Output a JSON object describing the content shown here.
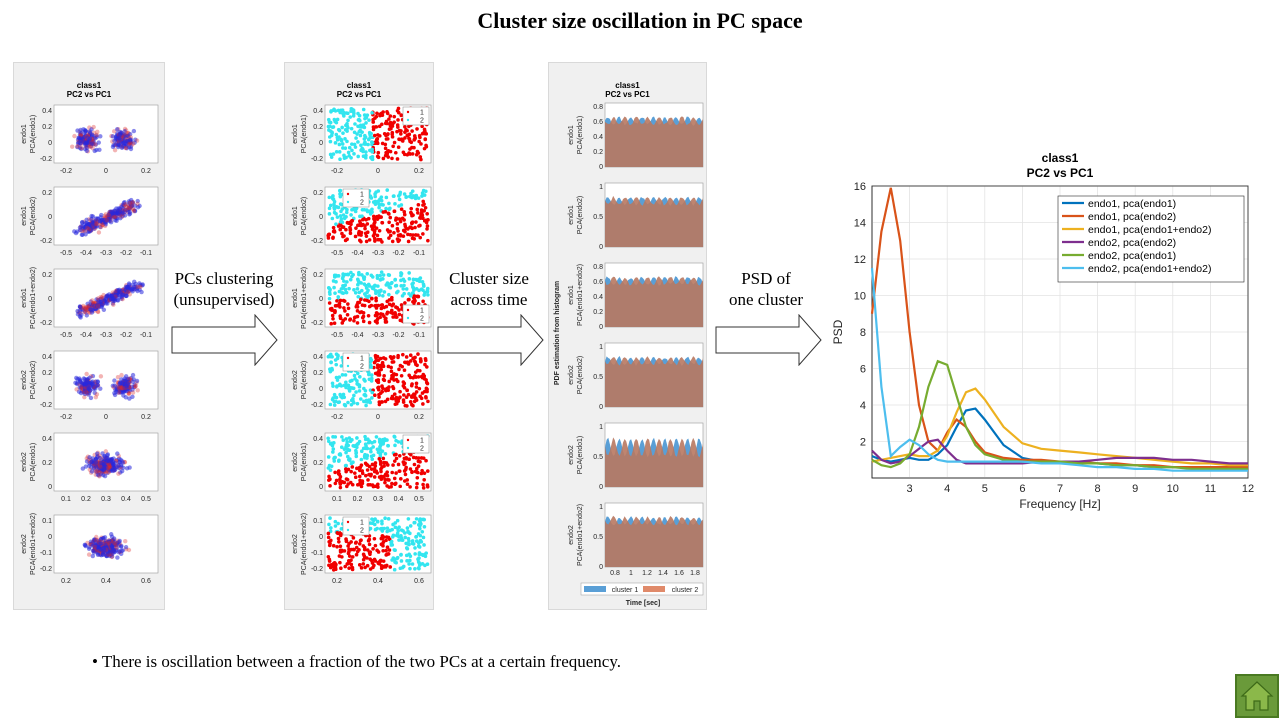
{
  "title": "Cluster size oscillation in PC space",
  "panel1": {
    "title_line1": "class1",
    "title_line2": "PC2 vs PC1",
    "rows": [
      {
        "ylabel1": "endo1",
        "ylabel2": "PCA(endo1)",
        "yticks": [
          "0.4",
          "0.2",
          "0",
          "-0.2"
        ],
        "xticks": [
          "-0.2",
          "0",
          "0.2"
        ]
      },
      {
        "ylabel1": "endo1",
        "ylabel2": "PCA(endo2)",
        "yticks": [
          "0.2",
          "0",
          "-0.2"
        ],
        "xticks": [
          "-0.5",
          "-0.4",
          "-0.3",
          "-0.2",
          "-0.1"
        ]
      },
      {
        "ylabel1": "endo1",
        "ylabel2": "PCA(endo1+endo2)",
        "yticks": [
          "0.2",
          "0",
          "-0.2"
        ],
        "xticks": [
          "-0.5",
          "-0.4",
          "-0.3",
          "-0.2",
          "-0.1"
        ]
      },
      {
        "ylabel1": "endo2",
        "ylabel2": "PCA(endo2)",
        "yticks": [
          "0.4",
          "0.2",
          "0",
          "-0.2"
        ],
        "xticks": [
          "-0.2",
          "0",
          "0.2"
        ]
      },
      {
        "ylabel1": "endo2",
        "ylabel2": "PCA(endo1)",
        "yticks": [
          "0.4",
          "0.2",
          "0"
        ],
        "xticks": [
          "0.1",
          "0.2",
          "0.3",
          "0.4",
          "0.5"
        ]
      },
      {
        "ylabel1": "endo2",
        "ylabel2": "PCA(endo1+endo2)",
        "yticks": [
          "0.1",
          "0",
          "-0.1",
          "-0.2"
        ],
        "xticks": [
          "0.2",
          "0.4",
          "0.6"
        ]
      }
    ]
  },
  "panel2": {
    "title_line1": "class1",
    "title_line2": "PC2 vs PC1",
    "legend": [
      "1",
      "2"
    ]
  },
  "panel3": {
    "title_line1": "class1",
    "title_line2": "PC2 vs PC1",
    "side_label": "PDF estimation from histogram",
    "xlabel": "Time [sec]",
    "xticks": [
      "0.8",
      "1",
      "1.2",
      "1.4",
      "1.6",
      "1.8"
    ],
    "legend": [
      "cluster 1",
      "cluster 2"
    ]
  },
  "arrows": [
    {
      "line1": "PCs clustering",
      "line2": "(unsupervised)"
    },
    {
      "line1": "Cluster size",
      "line2": "across time"
    },
    {
      "line1": "PSD of",
      "line2": "one cluster"
    }
  ],
  "chart_data": {
    "type": "line",
    "title": "class1",
    "subtitle": "PC2 vs PC1",
    "xlabel": "Frequency [Hz]",
    "ylabel": "PSD",
    "xlim": [
      2,
      12
    ],
    "ylim": [
      0,
      16
    ],
    "xticks": [
      3,
      4,
      5,
      6,
      7,
      8,
      9,
      10,
      11,
      12
    ],
    "yticks": [
      2,
      4,
      6,
      8,
      10,
      12,
      14,
      16
    ],
    "grid": true,
    "legend_position": "top-right",
    "x": [
      2.0,
      2.25,
      2.5,
      2.75,
      3.0,
      3.25,
      3.5,
      3.75,
      4.0,
      4.25,
      4.5,
      4.75,
      5.0,
      5.5,
      6.0,
      6.5,
      7.0,
      7.5,
      8.0,
      8.5,
      9.0,
      9.5,
      10.0,
      10.5,
      11.0,
      11.5,
      12.0
    ],
    "series": [
      {
        "name": "endo1, pca(endo1)",
        "color": "#0072bd",
        "values": [
          1.2,
          1.0,
          0.9,
          1.0,
          1.1,
          1.0,
          1.0,
          1.3,
          1.8,
          2.8,
          3.7,
          3.8,
          3.2,
          1.8,
          1.1,
          0.9,
          0.9,
          0.8,
          0.8,
          0.7,
          0.7,
          0.6,
          0.6,
          0.6,
          0.6,
          0.6,
          0.6
        ]
      },
      {
        "name": "endo1, pca(endo2)",
        "color": "#d95319",
        "values": [
          9.0,
          13.5,
          15.9,
          13.0,
          8.0,
          4.0,
          2.0,
          1.5,
          2.5,
          3.2,
          2.8,
          2.0,
          1.4,
          1.1,
          1.0,
          1.0,
          0.9,
          0.9,
          0.8,
          0.8,
          0.7,
          0.7,
          0.6,
          0.6,
          0.6,
          0.6,
          0.6
        ]
      },
      {
        "name": "endo1, pca(endo1+endo2)",
        "color": "#edb120",
        "values": [
          0.9,
          1.0,
          1.1,
          1.2,
          1.3,
          1.2,
          1.2,
          1.5,
          2.3,
          3.6,
          4.7,
          4.9,
          4.3,
          2.8,
          1.9,
          1.6,
          1.5,
          1.4,
          1.3,
          1.2,
          1.1,
          1.0,
          0.9,
          0.8,
          0.8,
          0.7,
          0.7
        ]
      },
      {
        "name": "endo2, pca(endo2)",
        "color": "#7e2f8e",
        "values": [
          1.5,
          1.0,
          0.8,
          0.9,
          1.2,
          1.6,
          2.0,
          2.1,
          1.5,
          1.0,
          0.8,
          0.8,
          0.8,
          0.8,
          0.8,
          0.9,
          0.9,
          0.9,
          1.0,
          1.1,
          1.1,
          1.1,
          1.0,
          1.0,
          0.9,
          0.8,
          0.8
        ]
      },
      {
        "name": "endo2, pca(endo1)",
        "color": "#77ac30",
        "values": [
          1.0,
          0.7,
          0.6,
          0.8,
          1.3,
          2.8,
          5.0,
          6.4,
          6.2,
          4.5,
          2.8,
          1.8,
          1.3,
          1.0,
          0.9,
          0.9,
          0.9,
          0.8,
          0.8,
          0.7,
          0.7,
          0.6,
          0.6,
          0.5,
          0.5,
          0.5,
          0.5
        ]
      },
      {
        "name": "endo2, pca(endo1+endo2)",
        "color": "#4dbeee",
        "values": [
          11.5,
          5.0,
          1.2,
          1.7,
          2.1,
          1.8,
          1.3,
          1.0,
          0.9,
          0.9,
          0.9,
          0.9,
          0.9,
          0.9,
          0.9,
          0.8,
          0.8,
          0.7,
          0.6,
          0.6,
          0.5,
          0.5,
          0.4,
          0.4,
          0.4,
          0.4,
          0.4
        ]
      }
    ]
  },
  "bullet": "• There is oscillation between a fraction of the two PCs at a certain frequency.",
  "home_icon": "home-icon"
}
